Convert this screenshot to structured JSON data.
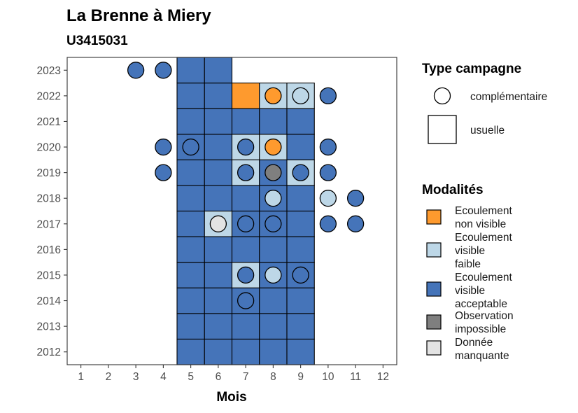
{
  "title": "La Brenne à Miery",
  "subtitle": "U3415031",
  "chart_data": {
    "type": "heatmap",
    "xlabel": "Mois",
    "ylabel": "",
    "x_ticks": [
      1,
      2,
      3,
      4,
      5,
      6,
      7,
      8,
      9,
      10,
      11,
      12
    ],
    "y_ticks": [
      2012,
      2013,
      2014,
      2015,
      2016,
      2017,
      2018,
      2019,
      2020,
      2021,
      2022,
      2023
    ],
    "xlim": [
      0.5,
      12.5
    ],
    "ylim": [
      2011.5,
      2023.5
    ],
    "grid": false,
    "colors": {
      "non_visible": "#FE9A2E",
      "visible_faible": "#BDD7E7",
      "visible_acceptable": "#4574B9",
      "impossible": "#7F7F7F",
      "manquante": "#E3E3E3"
    },
    "tiles": [
      {
        "year": 2012,
        "month": 5,
        "mod": "visible_acceptable"
      },
      {
        "year": 2012,
        "month": 6,
        "mod": "visible_acceptable"
      },
      {
        "year": 2012,
        "month": 7,
        "mod": "visible_acceptable"
      },
      {
        "year": 2012,
        "month": 8,
        "mod": "visible_acceptable"
      },
      {
        "year": 2012,
        "month": 9,
        "mod": "visible_acceptable"
      },
      {
        "year": 2013,
        "month": 5,
        "mod": "visible_acceptable"
      },
      {
        "year": 2013,
        "month": 6,
        "mod": "visible_acceptable"
      },
      {
        "year": 2013,
        "month": 7,
        "mod": "visible_acceptable"
      },
      {
        "year": 2013,
        "month": 8,
        "mod": "visible_acceptable"
      },
      {
        "year": 2013,
        "month": 9,
        "mod": "visible_acceptable"
      },
      {
        "year": 2014,
        "month": 5,
        "mod": "visible_acceptable"
      },
      {
        "year": 2014,
        "month": 6,
        "mod": "visible_acceptable"
      },
      {
        "year": 2014,
        "month": 7,
        "mod": "visible_acceptable"
      },
      {
        "year": 2014,
        "month": 8,
        "mod": "visible_acceptable"
      },
      {
        "year": 2014,
        "month": 9,
        "mod": "visible_acceptable"
      },
      {
        "year": 2015,
        "month": 5,
        "mod": "visible_acceptable"
      },
      {
        "year": 2015,
        "month": 6,
        "mod": "visible_acceptable"
      },
      {
        "year": 2015,
        "month": 7,
        "mod": "visible_faible"
      },
      {
        "year": 2015,
        "month": 8,
        "mod": "visible_acceptable"
      },
      {
        "year": 2015,
        "month": 9,
        "mod": "visible_acceptable"
      },
      {
        "year": 2016,
        "month": 5,
        "mod": "visible_acceptable"
      },
      {
        "year": 2016,
        "month": 6,
        "mod": "visible_acceptable"
      },
      {
        "year": 2016,
        "month": 7,
        "mod": "visible_acceptable"
      },
      {
        "year": 2016,
        "month": 8,
        "mod": "visible_acceptable"
      },
      {
        "year": 2016,
        "month": 9,
        "mod": "visible_acceptable"
      },
      {
        "year": 2017,
        "month": 5,
        "mod": "visible_acceptable"
      },
      {
        "year": 2017,
        "month": 6,
        "mod": "visible_faible"
      },
      {
        "year": 2017,
        "month": 7,
        "mod": "visible_acceptable"
      },
      {
        "year": 2017,
        "month": 8,
        "mod": "visible_acceptable"
      },
      {
        "year": 2017,
        "month": 9,
        "mod": "visible_acceptable"
      },
      {
        "year": 2018,
        "month": 5,
        "mod": "visible_acceptable"
      },
      {
        "year": 2018,
        "month": 6,
        "mod": "visible_acceptable"
      },
      {
        "year": 2018,
        "month": 7,
        "mod": "visible_acceptable"
      },
      {
        "year": 2018,
        "month": 8,
        "mod": "visible_acceptable"
      },
      {
        "year": 2018,
        "month": 9,
        "mod": "visible_acceptable"
      },
      {
        "year": 2019,
        "month": 5,
        "mod": "visible_acceptable"
      },
      {
        "year": 2019,
        "month": 6,
        "mod": "visible_acceptable"
      },
      {
        "year": 2019,
        "month": 7,
        "mod": "visible_faible"
      },
      {
        "year": 2019,
        "month": 8,
        "mod": "visible_acceptable"
      },
      {
        "year": 2019,
        "month": 9,
        "mod": "visible_faible"
      },
      {
        "year": 2020,
        "month": 5,
        "mod": "visible_acceptable"
      },
      {
        "year": 2020,
        "month": 6,
        "mod": "visible_acceptable"
      },
      {
        "year": 2020,
        "month": 7,
        "mod": "visible_faible"
      },
      {
        "year": 2020,
        "month": 8,
        "mod": "visible_faible"
      },
      {
        "year": 2020,
        "month": 9,
        "mod": "visible_acceptable"
      },
      {
        "year": 2021,
        "month": 5,
        "mod": "visible_acceptable"
      },
      {
        "year": 2021,
        "month": 6,
        "mod": "visible_acceptable"
      },
      {
        "year": 2021,
        "month": 7,
        "mod": "visible_acceptable"
      },
      {
        "year": 2021,
        "month": 8,
        "mod": "visible_acceptable"
      },
      {
        "year": 2021,
        "month": 9,
        "mod": "visible_acceptable"
      },
      {
        "year": 2022,
        "month": 5,
        "mod": "visible_acceptable"
      },
      {
        "year": 2022,
        "month": 6,
        "mod": "visible_acceptable"
      },
      {
        "year": 2022,
        "month": 7,
        "mod": "non_visible"
      },
      {
        "year": 2022,
        "month": 8,
        "mod": "visible_faible"
      },
      {
        "year": 2022,
        "month": 9,
        "mod": "visible_faible"
      },
      {
        "year": 2023,
        "month": 5,
        "mod": "visible_acceptable"
      },
      {
        "year": 2023,
        "month": 6,
        "mod": "visible_acceptable"
      }
    ],
    "points": [
      {
        "year": 2023,
        "month": 3,
        "mod": "visible_acceptable"
      },
      {
        "year": 2023,
        "month": 4,
        "mod": "visible_acceptable"
      },
      {
        "year": 2022,
        "month": 8,
        "mod": "non_visible"
      },
      {
        "year": 2022,
        "month": 9,
        "mod": "visible_faible"
      },
      {
        "year": 2022,
        "month": 10,
        "mod": "visible_acceptable"
      },
      {
        "year": 2020,
        "month": 4,
        "mod": "visible_acceptable"
      },
      {
        "year": 2020,
        "month": 5,
        "mod": "visible_acceptable"
      },
      {
        "year": 2020,
        "month": 7,
        "mod": "visible_acceptable"
      },
      {
        "year": 2020,
        "month": 8,
        "mod": "non_visible"
      },
      {
        "year": 2020,
        "month": 10,
        "mod": "visible_acceptable"
      },
      {
        "year": 2019,
        "month": 4,
        "mod": "visible_acceptable"
      },
      {
        "year": 2019,
        "month": 7,
        "mod": "visible_acceptable"
      },
      {
        "year": 2019,
        "month": 8,
        "mod": "impossible"
      },
      {
        "year": 2019,
        "month": 9,
        "mod": "visible_acceptable"
      },
      {
        "year": 2019,
        "month": 10,
        "mod": "visible_acceptable"
      },
      {
        "year": 2018,
        "month": 8,
        "mod": "visible_faible"
      },
      {
        "year": 2018,
        "month": 10,
        "mod": "visible_faible"
      },
      {
        "year": 2018,
        "month": 11,
        "mod": "visible_acceptable"
      },
      {
        "year": 2017,
        "month": 6,
        "mod": "manquante"
      },
      {
        "year": 2017,
        "month": 7,
        "mod": "visible_acceptable"
      },
      {
        "year": 2017,
        "month": 8,
        "mod": "visible_acceptable"
      },
      {
        "year": 2017,
        "month": 10,
        "mod": "visible_acceptable"
      },
      {
        "year": 2017,
        "month": 11,
        "mod": "visible_acceptable"
      },
      {
        "year": 2015,
        "month": 7,
        "mod": "visible_acceptable"
      },
      {
        "year": 2015,
        "month": 8,
        "mod": "visible_faible"
      },
      {
        "year": 2015,
        "month": 9,
        "mod": "visible_acceptable"
      },
      {
        "year": 2014,
        "month": 7,
        "mod": "visible_acceptable"
      }
    ],
    "legend_type": {
      "title": "Type campagne",
      "items": [
        {
          "label": "complémentaire",
          "shape": "circle"
        },
        {
          "label": "usuelle",
          "shape": "square"
        }
      ]
    },
    "legend_modalites": {
      "title": "Modalités",
      "items": [
        {
          "key": "non_visible",
          "lines": [
            "Ecoulement",
            "non visible"
          ]
        },
        {
          "key": "visible_faible",
          "lines": [
            "Ecoulement",
            "visible",
            "faible"
          ]
        },
        {
          "key": "visible_acceptable",
          "lines": [
            "Ecoulement",
            "visible",
            "acceptable"
          ]
        },
        {
          "key": "impossible",
          "lines": [
            "Observation",
            "impossible"
          ]
        },
        {
          "key": "manquante",
          "lines": [
            "Donnée",
            "manquante"
          ]
        }
      ]
    }
  }
}
